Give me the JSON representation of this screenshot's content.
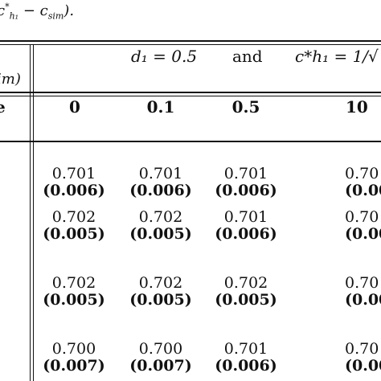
{
  "caption_fragment": "c*h1 − csim).",
  "caption_parts": {
    "prefix": "c",
    "sup": "*",
    "sub": "h₁",
    "suffix": " − c",
    "sub2": "sim",
    "end": ")."
  },
  "table": {
    "header_left_fragment": "im)",
    "group_header": {
      "d1": "d₁ = 0.5",
      "and": "and",
      "c_h1": "c*h₁ = 1/√"
    },
    "row_header_fragment": "e",
    "column_headers": [
      "0",
      "0.1",
      "0.5",
      "10"
    ],
    "rows": [
      {
        "values": [
          "0.701",
          "0.701",
          "0.701",
          "0.70"
        ],
        "sds": [
          "(0.006)",
          "(0.006)",
          "(0.006)",
          "(0.00"
        ]
      },
      {
        "values": [
          "0.702",
          "0.702",
          "0.701",
          "0.70"
        ],
        "sds": [
          "(0.005)",
          "(0.005)",
          "(0.006)",
          "(0.00"
        ]
      },
      {
        "values": [
          "0.702",
          "0.702",
          "0.702",
          "0.70"
        ],
        "sds": [
          "(0.005)",
          "(0.005)",
          "(0.005)",
          "(0.00"
        ]
      },
      {
        "values": [
          "0.700",
          "0.700",
          "0.701",
          "0.70"
        ],
        "sds": [
          "(0.007)",
          "(0.007)",
          "(0.006)",
          "(0.00"
        ]
      }
    ]
  }
}
